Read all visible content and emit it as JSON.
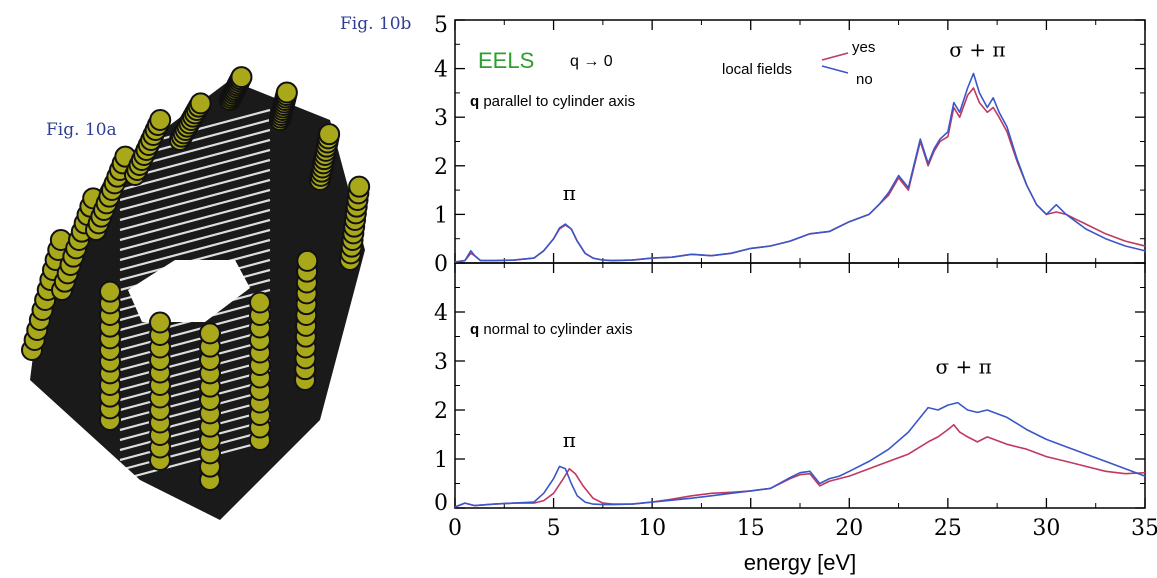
{
  "figure": {
    "fig_a_label": "Fig. 10a",
    "fig_b_label": "Fig. 10b"
  },
  "colors": {
    "yes_series": "#c0395f",
    "no_series": "#3a57c9",
    "eels_text": "#2ca02c",
    "fig_label": "#2f3f93",
    "atom_fill": "#a9a81a"
  },
  "chart_data": {
    "type": "line",
    "shared_x_axis": {
      "label": "energy  [eV]",
      "range": [
        0,
        35
      ],
      "ticks": [
        0,
        5,
        10,
        15,
        20,
        25,
        30,
        35
      ]
    },
    "annotation": {
      "eels": "EELS",
      "q_limit": "q → 0"
    },
    "legend": {
      "title": "local fields",
      "entries": [
        "yes",
        "no"
      ]
    },
    "panels": [
      {
        "condition_bold": "q",
        "condition_text": " parallel to cylinder axis",
        "ylim": [
          0,
          5
        ],
        "yticks": [
          0,
          1,
          2,
          3,
          4,
          5
        ],
        "peak_labels": [
          {
            "text": "π",
            "x": 5.8,
            "y": 1.3
          },
          {
            "text": "σ + π",
            "x": 26.5,
            "y": 4.25
          }
        ],
        "series": [
          {
            "name": "yes",
            "x": [
              0,
              0.5,
              0.8,
              1.0,
              1.3,
              2,
              3,
              4,
              4.5,
              5,
              5.3,
              5.6,
              5.9,
              6.2,
              6.6,
              7,
              7.5,
              8,
              9,
              10,
              11,
              12,
              13,
              14,
              15,
              16,
              17,
              18,
              19,
              20,
              21,
              21.5,
              22,
              22.5,
              23,
              23.3,
              23.6,
              24,
              24.3,
              24.6,
              25,
              25.3,
              25.6,
              26,
              26.3,
              26.6,
              27,
              27.3,
              27.6,
              28,
              28.5,
              29,
              29.5,
              30,
              30.5,
              31,
              31.5,
              32,
              33,
              34,
              35
            ],
            "values": [
              0.02,
              0.05,
              0.2,
              0.15,
              0.05,
              0.05,
              0.06,
              0.1,
              0.25,
              0.5,
              0.7,
              0.78,
              0.7,
              0.45,
              0.2,
              0.1,
              0.06,
              0.05,
              0.06,
              0.1,
              0.12,
              0.18,
              0.15,
              0.2,
              0.3,
              0.35,
              0.45,
              0.6,
              0.65,
              0.85,
              1.0,
              1.2,
              1.4,
              1.75,
              1.5,
              2.0,
              2.5,
              2.0,
              2.3,
              2.5,
              2.6,
              3.2,
              3.0,
              3.45,
              3.6,
              3.3,
              3.1,
              3.2,
              3.0,
              2.7,
              2.1,
              1.6,
              1.2,
              1.0,
              1.05,
              1.0,
              0.9,
              0.8,
              0.6,
              0.45,
              0.35
            ]
          },
          {
            "name": "no",
            "x": [
              0,
              0.5,
              0.8,
              1.0,
              1.3,
              2,
              3,
              4,
              4.5,
              5,
              5.3,
              5.6,
              5.9,
              6.2,
              6.6,
              7,
              7.5,
              8,
              9,
              10,
              11,
              12,
              13,
              14,
              15,
              16,
              17,
              18,
              19,
              20,
              21,
              21.5,
              22,
              22.5,
              23,
              23.3,
              23.6,
              24,
              24.3,
              24.6,
              25,
              25.3,
              25.6,
              26,
              26.3,
              26.6,
              27,
              27.3,
              27.6,
              28,
              28.5,
              29,
              29.5,
              30,
              30.5,
              31,
              31.5,
              32,
              33,
              34,
              35
            ],
            "values": [
              0.02,
              0.05,
              0.25,
              0.15,
              0.05,
              0.05,
              0.06,
              0.1,
              0.25,
              0.5,
              0.72,
              0.8,
              0.7,
              0.45,
              0.2,
              0.1,
              0.06,
              0.05,
              0.06,
              0.1,
              0.12,
              0.18,
              0.15,
              0.2,
              0.3,
              0.35,
              0.45,
              0.6,
              0.65,
              0.85,
              1.0,
              1.2,
              1.45,
              1.8,
              1.55,
              2.05,
              2.55,
              2.05,
              2.35,
              2.55,
              2.7,
              3.3,
              3.1,
              3.6,
              3.9,
              3.5,
              3.2,
              3.4,
              3.1,
              2.8,
              2.15,
              1.6,
              1.2,
              1.0,
              1.2,
              1.0,
              0.85,
              0.7,
              0.5,
              0.35,
              0.25
            ]
          }
        ]
      },
      {
        "condition_bold": "q",
        "condition_text": " normal to cylinder axis",
        "ylim": [
          0,
          5
        ],
        "yticks": [
          0,
          1,
          2,
          3,
          4
        ],
        "peak_labels": [
          {
            "text": "π",
            "x": 5.8,
            "y": 1.25
          },
          {
            "text": "σ + π",
            "x": 25.8,
            "y": 2.75
          }
        ],
        "series": [
          {
            "name": "yes",
            "x": [
              0,
              0.5,
              1,
              2,
              3,
              4,
              4.5,
              5,
              5.5,
              5.8,
              6.1,
              6.5,
              7,
              7.5,
              8,
              9,
              10,
              11,
              12,
              13,
              14,
              15,
              16,
              17,
              17.5,
              18,
              18.5,
              19,
              19.5,
              20,
              21,
              22,
              23,
              24,
              24.5,
              25,
              25.3,
              25.6,
              26,
              26.5,
              27,
              28,
              29,
              30,
              31,
              32,
              33,
              34,
              35
            ],
            "values": [
              0.02,
              0.1,
              0.05,
              0.08,
              0.1,
              0.1,
              0.15,
              0.3,
              0.6,
              0.8,
              0.7,
              0.45,
              0.2,
              0.1,
              0.08,
              0.08,
              0.12,
              0.18,
              0.25,
              0.3,
              0.32,
              0.35,
              0.4,
              0.6,
              0.68,
              0.7,
              0.45,
              0.55,
              0.6,
              0.65,
              0.8,
              0.95,
              1.1,
              1.35,
              1.45,
              1.6,
              1.7,
              1.55,
              1.45,
              1.35,
              1.45,
              1.3,
              1.2,
              1.05,
              0.95,
              0.85,
              0.75,
              0.7,
              0.72
            ]
          },
          {
            "name": "no",
            "x": [
              0,
              0.5,
              1,
              2,
              3,
              4,
              4.5,
              5,
              5.3,
              5.6,
              5.9,
              6.2,
              6.6,
              7,
              7.5,
              8,
              9,
              10,
              11,
              12,
              13,
              14,
              15,
              16,
              17,
              17.5,
              18,
              18.5,
              19,
              19.5,
              20,
              21,
              22,
              23,
              24,
              24.5,
              25,
              25.5,
              26,
              26.5,
              27,
              28,
              29,
              30,
              31,
              32,
              33,
              34,
              35
            ],
            "values": [
              0.02,
              0.1,
              0.05,
              0.08,
              0.1,
              0.12,
              0.3,
              0.6,
              0.85,
              0.8,
              0.5,
              0.25,
              0.12,
              0.08,
              0.07,
              0.07,
              0.08,
              0.12,
              0.16,
              0.2,
              0.25,
              0.3,
              0.35,
              0.4,
              0.62,
              0.72,
              0.75,
              0.5,
              0.6,
              0.65,
              0.75,
              0.95,
              1.2,
              1.55,
              2.05,
              2.0,
              2.1,
              2.15,
              2.0,
              1.95,
              2.0,
              1.85,
              1.6,
              1.4,
              1.25,
              1.1,
              0.95,
              0.8,
              0.65
            ]
          }
        ]
      }
    ]
  }
}
